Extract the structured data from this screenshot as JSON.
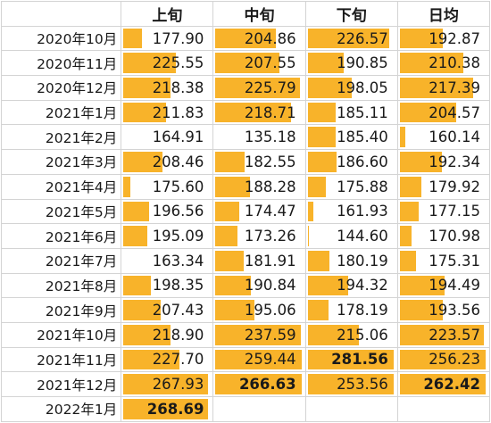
{
  "table": {
    "headers": [
      "",
      "上旬",
      "中旬",
      "下旬",
      "日均"
    ],
    "bar_color": "#f8b32a",
    "rows": [
      {
        "label": "2020年10月",
        "values": [
          "177.90",
          "204.86",
          "226.57",
          "192.87"
        ],
        "fill": [
          0.24,
          0.7,
          0.93,
          0.51
        ]
      },
      {
        "label": "2020年11月",
        "values": [
          "225.55",
          "207.55",
          "190.85",
          "210.38"
        ],
        "fill": [
          0.61,
          0.74,
          0.43,
          0.74
        ]
      },
      {
        "label": "2020年12月",
        "values": [
          "218.38",
          "225.79",
          "198.05",
          "217.39"
        ],
        "fill": [
          0.56,
          0.96,
          0.52,
          0.84
        ]
      },
      {
        "label": "2021年1月",
        "values": [
          "211.83",
          "218.71",
          "185.11",
          "204.57"
        ],
        "fill": [
          0.51,
          0.87,
          0.35,
          0.66
        ]
      },
      {
        "label": "2021年2月",
        "values": [
          "164.91",
          "135.18",
          "185.40",
          "160.14"
        ],
        "fill": [
          0.02,
          0.0,
          0.35,
          0.1
        ]
      },
      {
        "label": "2021年3月",
        "values": [
          "208.46",
          "182.55",
          "186.60",
          "192.34"
        ],
        "fill": [
          0.47,
          0.36,
          0.36,
          0.5
        ]
      },
      {
        "label": "2021年4月",
        "values": [
          "175.60",
          "188.28",
          "175.88",
          "179.92"
        ],
        "fill": [
          0.12,
          0.42,
          0.24,
          0.28
        ]
      },
      {
        "label": "2021年5月",
        "values": [
          "196.56",
          "174.47",
          "161.93",
          "177.15"
        ],
        "fill": [
          0.32,
          0.3,
          0.1,
          0.25
        ]
      },
      {
        "label": "2021年6月",
        "values": [
          "195.09",
          "173.26",
          "144.60",
          "170.98"
        ],
        "fill": [
          0.3,
          0.28,
          0.04,
          0.17
        ]
      },
      {
        "label": "2021年7月",
        "values": [
          "163.34",
          "181.91",
          "180.19",
          "175.31"
        ],
        "fill": [
          0.0,
          0.35,
          0.28,
          0.22
        ]
      },
      {
        "label": "2021年8月",
        "values": [
          "198.35",
          "190.84",
          "194.32",
          "194.49"
        ],
        "fill": [
          0.34,
          0.43,
          0.48,
          0.53
        ]
      },
      {
        "label": "2021年9月",
        "values": [
          "207.43",
          "195.06",
          "178.19",
          "193.56"
        ],
        "fill": [
          0.45,
          0.47,
          0.27,
          0.51
        ]
      },
      {
        "label": "2021年10月",
        "values": [
          "218.90",
          "237.59",
          "215.06",
          "223.57"
        ],
        "fill": [
          0.56,
          0.97,
          0.6,
          0.96
        ]
      },
      {
        "label": "2021年11月",
        "values": [
          "227.70",
          "259.44",
          "281.56",
          "256.23"
        ],
        "fill": [
          0.65,
          0.98,
          0.98,
          0.98
        ]
      },
      {
        "label": "2021年12月",
        "values": [
          "267.93",
          "266.63",
          "253.56",
          "262.42"
        ],
        "fill": [
          0.97,
          0.98,
          0.98,
          0.98
        ]
      },
      {
        "label": "2022年1月",
        "values": [
          "268.69",
          "",
          "",
          ""
        ],
        "fill": [
          0.97,
          0,
          0,
          0
        ]
      }
    ],
    "bold_cells": [
      [
        13,
        2
      ],
      [
        14,
        1
      ],
      [
        14,
        3
      ],
      [
        15,
        0
      ]
    ]
  }
}
